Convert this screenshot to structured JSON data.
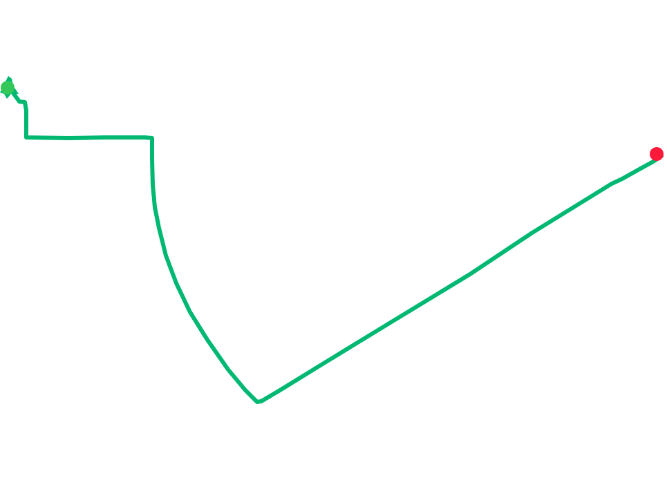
{
  "map": {
    "background_color": "#ffffff",
    "route": {
      "name": "route-track",
      "color": "#00b872"
    },
    "start_marker": {
      "icon": "start-point-marker",
      "color": "#34c759"
    },
    "end_marker": {
      "icon": "end-point-marker",
      "color": "#ff1a3c"
    }
  }
}
